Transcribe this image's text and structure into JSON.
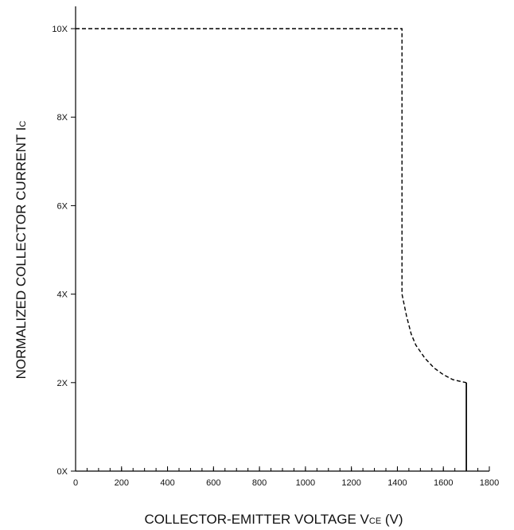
{
  "chart_data": {
    "type": "line",
    "title": "",
    "xlabel": {
      "main": "COLLECTOR-EMITTER VOLTAGE V",
      "sub": "CE",
      "suffix": " (V)"
    },
    "ylabel": {
      "main": "NORMALIZED COLLECTOR CURRENT I",
      "sub": "C"
    },
    "xlim": [
      0,
      1800
    ],
    "ylim": [
      0,
      10
    ],
    "x_ticks": [
      {
        "value": 0,
        "label": "0"
      },
      {
        "value": 200,
        "label": "200"
      },
      {
        "value": 400,
        "label": "400"
      },
      {
        "value": 600,
        "label": "600"
      },
      {
        "value": 800,
        "label": "800"
      },
      {
        "value": 1000,
        "label": "1000"
      },
      {
        "value": 1200,
        "label": "1200"
      },
      {
        "value": 1400,
        "label": "1400"
      },
      {
        "value": 1600,
        "label": "1600"
      },
      {
        "value": 1800,
        "label": "1800"
      }
    ],
    "y_ticks": [
      {
        "value": 0,
        "label": "0X"
      },
      {
        "value": 2,
        "label": "2X"
      },
      {
        "value": 4,
        "label": "4X"
      },
      {
        "value": 6,
        "label": "6X"
      },
      {
        "value": 8,
        "label": "8X"
      },
      {
        "value": 10,
        "label": "10X"
      }
    ],
    "x_minor_step": 50,
    "grid": false,
    "series": [
      {
        "style": "dashed",
        "color": "#000000",
        "points": [
          [
            0,
            10
          ],
          [
            1420,
            10
          ],
          [
            1420,
            4
          ],
          [
            1440,
            3.5
          ],
          [
            1460,
            3.1
          ],
          [
            1480,
            2.85
          ],
          [
            1520,
            2.55
          ],
          [
            1560,
            2.33
          ],
          [
            1600,
            2.18
          ],
          [
            1640,
            2.07
          ],
          [
            1680,
            2.02
          ],
          [
            1700,
            2.0
          ]
        ]
      },
      {
        "style": "solid",
        "color": "#000000",
        "points": [
          [
            1700,
            2.0
          ],
          [
            1700,
            0
          ]
        ]
      }
    ]
  }
}
